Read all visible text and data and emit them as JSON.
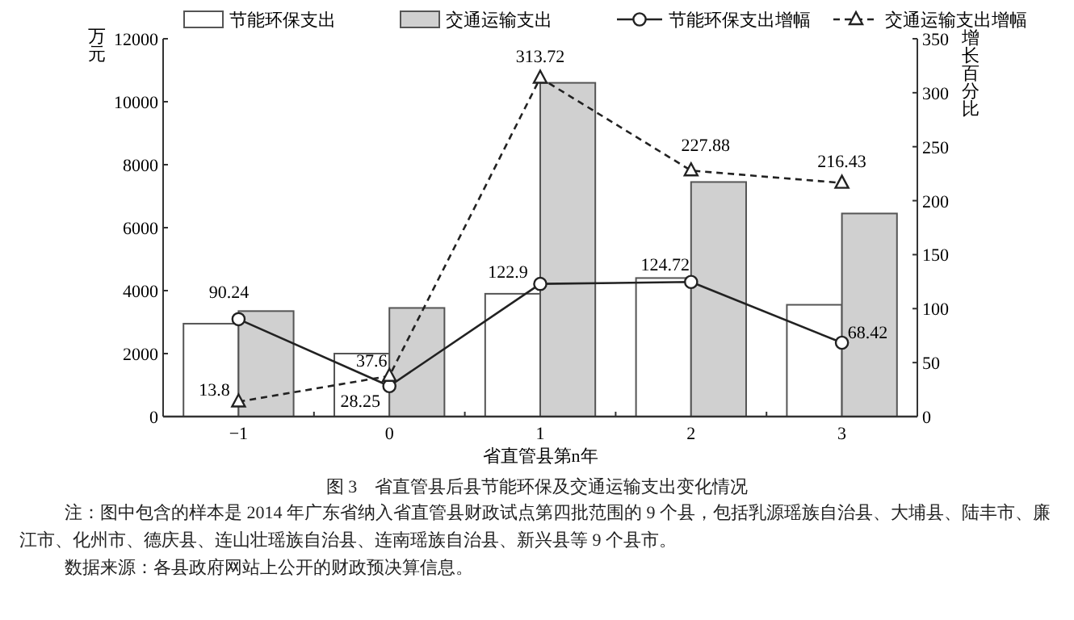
{
  "chart_data": {
    "type": "bar",
    "title": "图 3　省直管县后县节能环保及交通运输支出变化情况",
    "xlabel": "省直管县第n年",
    "ylabel": "万元",
    "y2label": "增长百分比",
    "categories": [
      "−1",
      "0",
      "1",
      "2",
      "3"
    ],
    "series": [
      {
        "name": "节能环保支出",
        "color": "#ffffff",
        "values": [
          2950,
          2000,
          3900,
          4400,
          3550
        ]
      },
      {
        "name": "交通运输支出",
        "color": "#d0d0d0",
        "values": [
          3350,
          3450,
          10600,
          7450,
          6450
        ]
      },
      {
        "name": "节能环保支出增幅",
        "type": "line",
        "axis": "y2",
        "color": "#222222",
        "marker": "circle",
        "line_style": "solid",
        "values": [
          90.24,
          28.25,
          122.9,
          124.72,
          68.42
        ],
        "value_labels": [
          "90.24",
          "28.25",
          "122.9",
          "124.72",
          "68.42"
        ]
      },
      {
        "name": "交通运输支出增幅",
        "type": "line",
        "axis": "y2",
        "color": "#222222",
        "marker": "triangle",
        "line_style": "dashed",
        "values": [
          13.8,
          37.6,
          313.72,
          227.88,
          216.43
        ],
        "value_labels": [
          "13.8",
          "37.6",
          "313.72",
          "227.88",
          "216.43"
        ]
      }
    ],
    "ylim": [
      0,
      12000
    ],
    "yticks": [
      0,
      2000,
      4000,
      6000,
      8000,
      10000,
      12000
    ],
    "y2lim": [
      0,
      350
    ],
    "y2ticks": [
      0,
      50,
      100,
      150,
      200,
      250,
      300,
      350
    ],
    "legend": "top",
    "annotations": [
      "注：图中包含的样本是 2014 年广东省纳入省直管县财政试点第四批范围的 9 个县，包括乳源瑶族自治县、大埔县、陆丰市、廉江市、化州市、德庆县、连山壮瑶族自治县、连南瑶族自治县、新兴县等 9 个县市。",
      "数据来源：各县政府网站上公开的财政预决算信息。"
    ]
  }
}
